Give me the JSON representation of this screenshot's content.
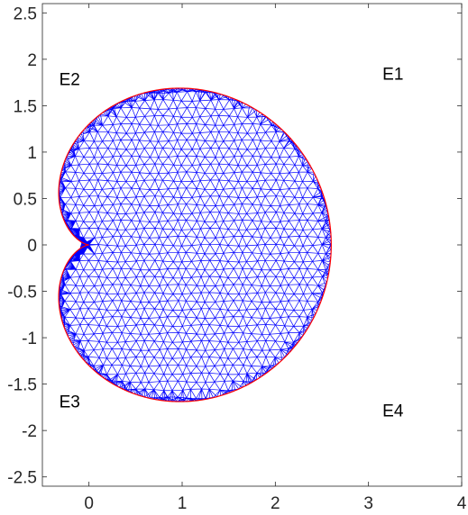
{
  "chart_data": {
    "type": "mesh",
    "xlim": [
      -0.5,
      4
    ],
    "ylim": [
      -2.6,
      2.6
    ],
    "x_ticks": [
      0,
      1,
      2,
      3,
      4
    ],
    "x_tick_labels": [
      "0",
      "1",
      "2",
      "3",
      "4"
    ],
    "y_ticks": [
      2.5,
      2,
      1.5,
      1,
      0.5,
      0,
      -0.5,
      -1,
      -1.5,
      -2,
      -2.5
    ],
    "y_tick_labels": [
      "2.5",
      "2",
      "1.5",
      "1",
      "0.5",
      "0",
      "-0.5",
      "-1",
      "-1.5",
      "-2",
      "-2.5"
    ],
    "grid": false,
    "boundary": {
      "shape": "cardioid",
      "description_values": {
        "a": 1.3,
        "center_x": 1.3,
        "center_y": 0
      },
      "color": "#ff0000"
    },
    "mesh_color": "#0000ff",
    "mesh_spacing": 0.1,
    "edge_labels": [
      {
        "text": "E1",
        "x": 3.15,
        "y": 1.78
      },
      {
        "text": "E2",
        "x": -0.32,
        "y": 1.72
      },
      {
        "text": "E3",
        "x": -0.32,
        "y": -1.75
      },
      {
        "text": "E4",
        "x": 3.15,
        "y": -1.85
      }
    ]
  }
}
